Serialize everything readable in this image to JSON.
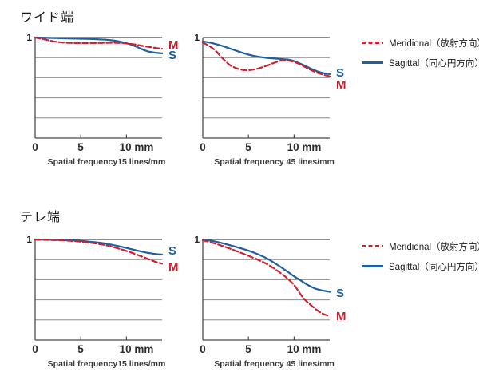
{
  "page": {
    "background": "#ffffff"
  },
  "sections": [
    {
      "title": "ワイド端"
    },
    {
      "title": "テレ端"
    }
  ],
  "legend": {
    "items": [
      {
        "label": "Meridional（放射方向）",
        "style": "dashed",
        "color": "#cf2030"
      },
      {
        "label": "Sagittal（同心円方向）",
        "style": "solid",
        "color": "#1e5fa0"
      }
    ]
  },
  "colors": {
    "grid": "#8c8c8c",
    "axis": "#4b4b4b",
    "meridional": "#cf2030",
    "sagittal": "#1e5fa0"
  },
  "chart_data": [
    {
      "id": "wide-15lines",
      "type": "line",
      "xlabel": "Spatial frequency15 lines/mm",
      "ytick_label": "1",
      "xtick_labels": [
        "0",
        "5",
        "10 mm"
      ],
      "xticks": [
        0,
        5,
        10
      ],
      "xlim": [
        0,
        13.9
      ],
      "ylim": [
        0,
        1
      ],
      "ygrid": [
        0.2,
        0.4,
        0.6,
        0.8
      ],
      "grid": "on",
      "legend_position": "right",
      "series": [
        {
          "name": "Meridional",
          "letter": "M",
          "color": "#cf2030",
          "dash": true,
          "end_label_y": 0.928,
          "x": [
            0,
            1,
            2,
            3,
            4,
            5,
            6,
            7,
            8,
            9,
            10,
            11,
            12,
            13,
            13.9
          ],
          "y": [
            1.0,
            0.982,
            0.962,
            0.951,
            0.946,
            0.945,
            0.945,
            0.946,
            0.948,
            0.948,
            0.941,
            0.929,
            0.913,
            0.899,
            0.888
          ]
        },
        {
          "name": "Sagittal",
          "letter": "S",
          "color": "#1e5fa0",
          "dash": false,
          "end_label_y": 0.818,
          "x": [
            0,
            2,
            4,
            6,
            7,
            8,
            9,
            10,
            11,
            12,
            12.8,
            13.9
          ],
          "y": [
            1.0,
            0.995,
            0.99,
            0.986,
            0.982,
            0.976,
            0.964,
            0.944,
            0.912,
            0.872,
            0.853,
            0.842
          ]
        }
      ]
    },
    {
      "id": "wide-45lines",
      "type": "line",
      "xlabel": "Spatial frequency 45 lines/mm",
      "ytick_label": "1",
      "xtick_labels": [
        "0",
        "5",
        "10 mm"
      ],
      "xticks": [
        0,
        5,
        10
      ],
      "xlim": [
        0,
        13.9
      ],
      "ylim": [
        0,
        1
      ],
      "ygrid": [
        0.2,
        0.4,
        0.6,
        0.8
      ],
      "grid": "on",
      "legend_position": "right",
      "series": [
        {
          "name": "Meridional",
          "letter": "M",
          "color": "#cf2030",
          "dash": true,
          "end_label_y": 0.528,
          "x": [
            0,
            0.7,
            1.4,
            2.2,
            3,
            4,
            5,
            6,
            7,
            8,
            8.7,
            9.5,
            10.5,
            11.5,
            12.5,
            13.9
          ],
          "y": [
            0.95,
            0.916,
            0.868,
            0.79,
            0.725,
            0.685,
            0.675,
            0.69,
            0.72,
            0.755,
            0.772,
            0.768,
            0.74,
            0.693,
            0.65,
            0.613
          ]
        },
        {
          "name": "Sagittal",
          "letter": "S",
          "color": "#1e5fa0",
          "dash": false,
          "end_label_y": 0.648,
          "x": [
            0,
            1,
            2,
            3,
            4,
            5,
            6,
            7,
            8,
            9,
            9.5,
            10,
            11,
            12,
            13,
            13.9
          ],
          "y": [
            0.962,
            0.945,
            0.92,
            0.89,
            0.858,
            0.83,
            0.81,
            0.798,
            0.79,
            0.783,
            0.778,
            0.765,
            0.728,
            0.683,
            0.65,
            0.636
          ]
        }
      ]
    },
    {
      "id": "tele-15lines",
      "type": "line",
      "xlabel": "Spatial frequency15 lines/mm",
      "ytick_label": "1",
      "xtick_labels": [
        "0",
        "5",
        "10 mm"
      ],
      "xticks": [
        0,
        5,
        10
      ],
      "xlim": [
        0,
        13.9
      ],
      "ylim": [
        0,
        1
      ],
      "ygrid": [
        0.2,
        0.4,
        0.6,
        0.8
      ],
      "grid": "on",
      "legend_position": "right",
      "series": [
        {
          "name": "Meridional",
          "letter": "M",
          "color": "#cf2030",
          "dash": true,
          "end_label_y": 0.728,
          "x": [
            0,
            2,
            4,
            5,
            6,
            7,
            8,
            9,
            10,
            11,
            12,
            13,
            13.9
          ],
          "y": [
            0.998,
            0.994,
            0.986,
            0.978,
            0.968,
            0.955,
            0.937,
            0.913,
            0.886,
            0.854,
            0.819,
            0.783,
            0.76
          ]
        },
        {
          "name": "Sagittal",
          "letter": "S",
          "color": "#1e5fa0",
          "dash": false,
          "end_label_y": 0.888,
          "x": [
            0,
            2,
            4,
            5,
            6,
            7,
            8,
            9,
            10,
            11,
            12,
            13,
            13.9
          ],
          "y": [
            1.0,
            0.997,
            0.99,
            0.985,
            0.978,
            0.968,
            0.954,
            0.936,
            0.915,
            0.893,
            0.872,
            0.857,
            0.849
          ]
        }
      ]
    },
    {
      "id": "tele-45lines",
      "type": "line",
      "xlabel": "Spatial frequency 45 lines/mm",
      "ytick_label": "1",
      "xtick_labels": [
        "0",
        "5",
        "10 mm"
      ],
      "xticks": [
        0,
        5,
        10
      ],
      "xlim": [
        0,
        13.9
      ],
      "ylim": [
        0,
        1
      ],
      "ygrid": [
        0.2,
        0.4,
        0.6,
        0.8
      ],
      "grid": "on",
      "legend_position": "right",
      "series": [
        {
          "name": "Meridional",
          "letter": "M",
          "color": "#cf2030",
          "dash": true,
          "end_label_y": 0.238,
          "x": [
            0,
            1,
            2,
            3,
            4,
            5,
            6,
            7,
            8,
            9,
            10,
            11,
            12,
            13,
            13.9
          ],
          "y": [
            0.992,
            0.968,
            0.94,
            0.908,
            0.873,
            0.837,
            0.8,
            0.756,
            0.7,
            0.633,
            0.547,
            0.42,
            0.335,
            0.268,
            0.238
          ]
        },
        {
          "name": "Sagittal",
          "letter": "S",
          "color": "#1e5fa0",
          "dash": false,
          "end_label_y": 0.468,
          "x": [
            0,
            1,
            2,
            3,
            4,
            5,
            6,
            7,
            8,
            9,
            10,
            10.6,
            11.5,
            12.5,
            13.9
          ],
          "y": [
            0.998,
            0.986,
            0.966,
            0.942,
            0.916,
            0.888,
            0.854,
            0.812,
            0.758,
            0.698,
            0.633,
            0.6,
            0.548,
            0.506,
            0.48
          ]
        }
      ]
    }
  ]
}
